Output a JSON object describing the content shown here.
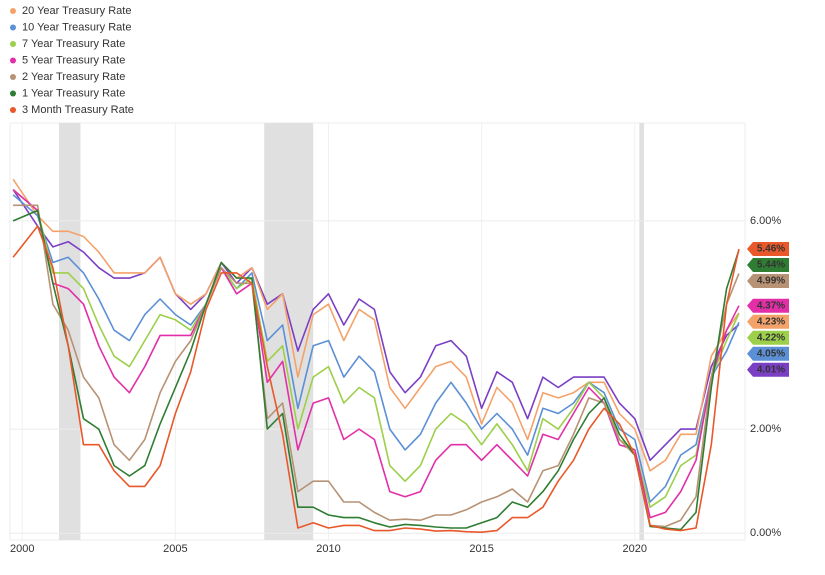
{
  "chart_data": {
    "type": "line",
    "x": [
      1999.7,
      2000.5,
      2001,
      2001.5,
      2002,
      2002.5,
      2003,
      2003.5,
      2004,
      2004.5,
      2005,
      2005.5,
      2006,
      2006.5,
      2007,
      2007.5,
      2008,
      2008.5,
      2009,
      2009.5,
      2010,
      2010.5,
      2011,
      2011.5,
      2012,
      2012.5,
      2013,
      2013.5,
      2014,
      2014.5,
      2015,
      2015.5,
      2016,
      2016.5,
      2017,
      2017.5,
      2018,
      2018.5,
      2019,
      2019.5,
      2020,
      2020.5,
      2021,
      2021.5,
      2022,
      2022.5,
      2023,
      2023.4
    ],
    "series": [
      {
        "color": "#7b3fc4",
        "last_label": "4.01%",
        "values": [
          6.6,
          5.9,
          5.5,
          5.6,
          5.4,
          5.1,
          4.9,
          4.9,
          5.0,
          5.3,
          4.6,
          4.3,
          4.6,
          5.2,
          4.8,
          5.1,
          4.4,
          4.6,
          3.5,
          4.3,
          4.6,
          4.0,
          4.5,
          4.3,
          3.1,
          2.7,
          3.0,
          3.6,
          3.7,
          3.4,
          2.4,
          3.1,
          2.9,
          2.2,
          3.0,
          2.8,
          3.0,
          3.0,
          3.0,
          2.5,
          2.2,
          1.4,
          1.7,
          2.0,
          2.0,
          3.2,
          3.8,
          4.01
        ]
      },
      {
        "name": "20 Year Treasury Rate",
        "color": "#f4a26a",
        "last_label": "4.23%",
        "values": [
          6.8,
          6.1,
          5.8,
          5.8,
          5.7,
          5.4,
          5.0,
          5.0,
          5.0,
          5.3,
          4.6,
          4.4,
          4.6,
          5.2,
          4.9,
          5.1,
          4.3,
          4.6,
          3.0,
          4.2,
          4.4,
          3.7,
          4.3,
          4.1,
          2.8,
          2.4,
          2.8,
          3.2,
          3.3,
          3.0,
          2.1,
          2.8,
          2.5,
          1.8,
          2.7,
          2.6,
          2.7,
          2.9,
          2.9,
          2.3,
          2.0,
          1.2,
          1.4,
          1.9,
          1.9,
          3.4,
          3.9,
          4.23
        ]
      },
      {
        "name": "10 Year Treasury Rate",
        "color": "#5b8fd6",
        "last_label": "4.05%",
        "values": [
          6.5,
          6.1,
          5.2,
          5.3,
          5.0,
          4.5,
          3.9,
          3.7,
          4.2,
          4.5,
          4.2,
          4.0,
          4.4,
          5.1,
          4.7,
          5.0,
          3.7,
          4.0,
          2.4,
          3.6,
          3.7,
          3.0,
          3.4,
          3.1,
          2.0,
          1.6,
          1.9,
          2.5,
          2.9,
          2.5,
          2.0,
          2.3,
          2.0,
          1.5,
          2.4,
          2.3,
          2.5,
          2.9,
          2.7,
          2.0,
          1.8,
          0.6,
          0.9,
          1.5,
          1.7,
          3.0,
          3.5,
          4.05
        ]
      },
      {
        "name": "7 Year Treasury Rate",
        "color": "#9ccf4a",
        "last_label": "4.22%",
        "values": [
          6.6,
          6.2,
          5.0,
          5.0,
          4.7,
          4.0,
          3.4,
          3.2,
          3.7,
          4.2,
          4.1,
          3.9,
          4.4,
          5.1,
          4.7,
          4.9,
          3.3,
          3.6,
          2.0,
          3.0,
          3.2,
          2.5,
          2.8,
          2.6,
          1.3,
          1.0,
          1.3,
          2.0,
          2.3,
          2.1,
          1.7,
          2.1,
          1.7,
          1.2,
          2.2,
          2.0,
          2.4,
          2.9,
          2.6,
          1.8,
          1.6,
          0.5,
          0.7,
          1.3,
          1.5,
          3.0,
          3.7,
          4.22
        ]
      },
      {
        "name": "5 Year Treasury Rate",
        "color": "#e22fa8",
        "last_label": "4.37%",
        "values": [
          6.6,
          6.2,
          4.8,
          4.7,
          4.4,
          3.6,
          3.0,
          2.7,
          3.2,
          3.8,
          3.8,
          3.8,
          4.4,
          5.1,
          4.6,
          4.8,
          2.9,
          3.3,
          1.6,
          2.5,
          2.6,
          1.8,
          2.0,
          1.8,
          0.8,
          0.7,
          0.8,
          1.4,
          1.7,
          1.7,
          1.4,
          1.7,
          1.4,
          1.1,
          1.9,
          1.8,
          2.3,
          2.8,
          2.5,
          1.7,
          1.6,
          0.3,
          0.4,
          0.8,
          1.4,
          3.0,
          3.9,
          4.37
        ]
      },
      {
        "name": "2 Year Treasury Rate",
        "color": "#b89274",
        "last_label": "4.99%",
        "values": [
          6.3,
          6.3,
          4.4,
          3.9,
          3.0,
          2.6,
          1.7,
          1.4,
          1.8,
          2.7,
          3.3,
          3.7,
          4.4,
          5.1,
          4.8,
          4.8,
          2.2,
          2.5,
          0.8,
          1.0,
          1.0,
          0.6,
          0.6,
          0.4,
          0.25,
          0.27,
          0.25,
          0.35,
          0.35,
          0.45,
          0.6,
          0.7,
          0.85,
          0.6,
          1.2,
          1.3,
          1.9,
          2.6,
          2.5,
          1.8,
          1.5,
          0.15,
          0.13,
          0.25,
          0.7,
          3.0,
          4.4,
          4.99
        ]
      },
      {
        "name": "1 Year Treasury Rate",
        "color": "#2e7d32",
        "last_label": "5.44%",
        "values": [
          6.0,
          6.2,
          4.8,
          3.6,
          2.2,
          2.0,
          1.3,
          1.1,
          1.3,
          2.1,
          2.8,
          3.5,
          4.4,
          5.2,
          4.9,
          4.9,
          2.0,
          2.3,
          0.5,
          0.5,
          0.35,
          0.3,
          0.3,
          0.2,
          0.12,
          0.17,
          0.15,
          0.12,
          0.1,
          0.1,
          0.2,
          0.3,
          0.6,
          0.5,
          0.8,
          1.2,
          1.8,
          2.3,
          2.6,
          1.9,
          1.5,
          0.13,
          0.1,
          0.07,
          0.4,
          2.8,
          4.7,
          5.44
        ]
      },
      {
        "name": "3 Month Treasury Rate",
        "color": "#e8582a",
        "last_label": "5.46%",
        "values": [
          5.3,
          5.9,
          5.1,
          3.6,
          1.7,
          1.7,
          1.2,
          0.9,
          0.9,
          1.3,
          2.3,
          3.1,
          4.3,
          5.0,
          5.0,
          4.8,
          3.2,
          1.9,
          0.1,
          0.2,
          0.1,
          0.15,
          0.15,
          0.05,
          0.05,
          0.1,
          0.08,
          0.04,
          0.05,
          0.03,
          0.02,
          0.05,
          0.3,
          0.3,
          0.5,
          1.0,
          1.4,
          2.0,
          2.4,
          2.1,
          1.5,
          0.15,
          0.08,
          0.05,
          0.1,
          1.7,
          4.4,
          5.46
        ]
      }
    ],
    "shaded_ranges": [
      [
        2001.2,
        2001.9
      ],
      [
        2007.9,
        2009.5
      ],
      [
        2020.15,
        2020.3
      ]
    ],
    "xlim": [
      1999.6,
      2023.6
    ],
    "xticks": [
      2000,
      2005,
      2010,
      2015,
      2020
    ],
    "ylim": [
      -0.13,
      7.88
    ],
    "yticks": [
      {
        "value": 0,
        "label": "0.00%"
      },
      {
        "value": 2,
        "label": "2.00%"
      },
      {
        "value": 6,
        "label": "6.00%"
      }
    ],
    "grid": true
  }
}
